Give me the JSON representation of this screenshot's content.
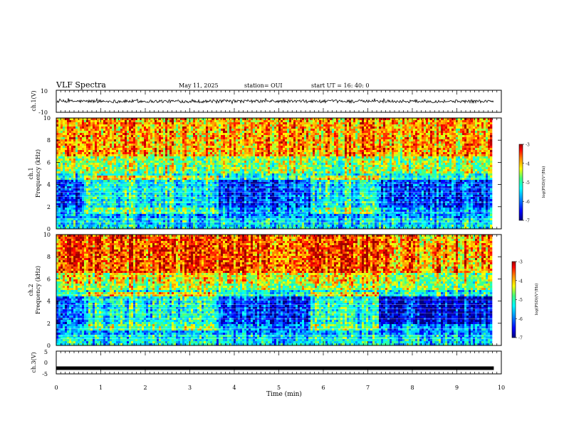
{
  "header": {
    "title": "VLF Spectra",
    "date": "May 11, 2025",
    "station": "station= OUI",
    "start": "start  UT =   16: 40: 0"
  },
  "chart_data": [
    {
      "type": "line",
      "panel": "ch1_waveform",
      "ylabel": "ch.1(V)",
      "ylim": [
        -10,
        10
      ],
      "yticks": [
        "10",
        "-10"
      ],
      "xlim": [
        0,
        10
      ],
      "trace_baseline": 0,
      "trace_amplitude": 2
    },
    {
      "type": "heatmap",
      "panel": "ch1_spectrogram",
      "ylabel": "ch.1\nFrequency (kHz)",
      "ylim": [
        0,
        10
      ],
      "yticks": [
        "0",
        "2",
        "4",
        "6",
        "8",
        "10"
      ],
      "xlim": [
        0,
        10
      ],
      "data_end_min": 9.83,
      "colorbar": {
        "label": "log(PSD)(V²/Hz)",
        "range": [
          -7,
          -3
        ],
        "ticks": [
          "-3",
          "-4",
          "-5",
          "-6",
          "-7"
        ]
      }
    },
    {
      "type": "heatmap",
      "panel": "ch2_spectrogram",
      "ylabel": "ch.2\nFrequency (kHz)",
      "ylim": [
        0,
        10
      ],
      "yticks": [
        "0",
        "2",
        "4",
        "6",
        "8",
        "10"
      ],
      "xlim": [
        0,
        10
      ],
      "data_end_min": 9.83,
      "colorbar": {
        "label": "log(PSD)(V²/Hz)",
        "range": [
          -7,
          -3
        ],
        "ticks": [
          "-3",
          "-4",
          "-5",
          "-6",
          "-7"
        ]
      }
    },
    {
      "type": "line",
      "panel": "ch3_waveform",
      "ylabel": "ch.3(V)",
      "ylim": [
        -5,
        5
      ],
      "yticks": [
        "5",
        "0",
        "-5"
      ],
      "xlim": [
        0,
        10
      ],
      "trace_value": -2.5,
      "xlabel": "Time (min)",
      "xticks": [
        "0",
        "1",
        "2",
        "3",
        "4",
        "5",
        "6",
        "7",
        "8",
        "9",
        "10"
      ]
    }
  ],
  "colors": {
    "axis": "#000000",
    "scale": [
      "#00007f",
      "#0000ff",
      "#007fff",
      "#00ffff",
      "#7fff7f",
      "#ffff00",
      "#ff7f00",
      "#ff0000",
      "#7f0000"
    ]
  }
}
